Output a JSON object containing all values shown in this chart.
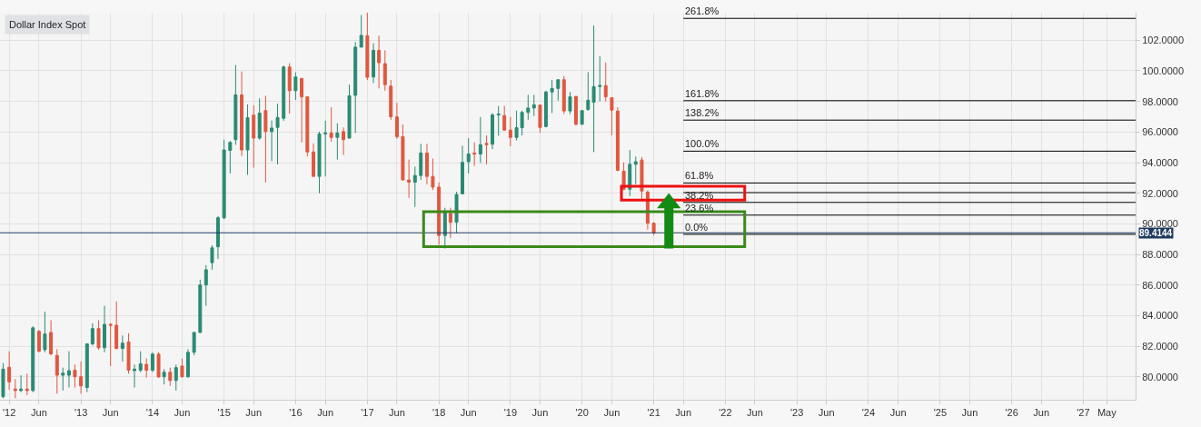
{
  "chart_data": {
    "type": "candlestick",
    "title": "Dollar Index Spot",
    "x": [
      "2011-12",
      "2012-01",
      "2012-02",
      "2012-03",
      "2012-04",
      "2012-05",
      "2012-06",
      "2012-07",
      "2012-08",
      "2012-09",
      "2012-10",
      "2012-11",
      "2012-12",
      "2013-01",
      "2013-02",
      "2013-03",
      "2013-04",
      "2013-05",
      "2013-06",
      "2013-07",
      "2013-08",
      "2013-09",
      "2013-10",
      "2013-11",
      "2013-12",
      "2014-01",
      "2014-02",
      "2014-03",
      "2014-04",
      "2014-05",
      "2014-06",
      "2014-07",
      "2014-08",
      "2014-09",
      "2014-10",
      "2014-11",
      "2014-12",
      "2015-01",
      "2015-02",
      "2015-03",
      "2015-04",
      "2015-05",
      "2015-06",
      "2015-07",
      "2015-08",
      "2015-09",
      "2015-10",
      "2015-11",
      "2015-12",
      "2016-01",
      "2016-02",
      "2016-03",
      "2016-04",
      "2016-05",
      "2016-06",
      "2016-07",
      "2016-08",
      "2016-09",
      "2016-10",
      "2016-11",
      "2016-12",
      "2017-01",
      "2017-02",
      "2017-03",
      "2017-04",
      "2017-05",
      "2017-06",
      "2017-07",
      "2017-08",
      "2017-09",
      "2017-10",
      "2017-11",
      "2017-12",
      "2018-01",
      "2018-02",
      "2018-03",
      "2018-04",
      "2018-05",
      "2018-06",
      "2018-07",
      "2018-08",
      "2018-09",
      "2018-10",
      "2018-11",
      "2018-12",
      "2019-01",
      "2019-02",
      "2019-03",
      "2019-04",
      "2019-05",
      "2019-06",
      "2019-07",
      "2019-08",
      "2019-09",
      "2019-10",
      "2019-11",
      "2019-12",
      "2020-01",
      "2020-02",
      "2020-03",
      "2020-04",
      "2020-05",
      "2020-06",
      "2020-07",
      "2020-08",
      "2020-09",
      "2020-10",
      "2020-11",
      "2020-12",
      "2021-01"
    ],
    "annotations": [
      {
        "text": "261.8%",
        "x": "2021-06",
        "y": 103.43
      },
      {
        "text": "161.8%",
        "x": "2021-06",
        "y": 98.05
      },
      {
        "text": "138.2%",
        "x": "2021-06",
        "y": 96.78
      },
      {
        "text": "100.0%",
        "x": "2021-06",
        "y": 94.75
      },
      {
        "text": "61.8%",
        "x": "2021-06",
        "y": 92.67
      },
      {
        "text": "38.2%",
        "x": "2021-06",
        "y": 91.4
      },
      {
        "text": "23.6%",
        "x": "2021-06",
        "y": 90.57
      },
      {
        "text": "0.0%",
        "x": "2021-06",
        "y": 89.31
      }
    ],
    "ohlc": [
      [
        78.7,
        80.9,
        78.6,
        80.5
      ],
      [
        80.63,
        81.67,
        79.15,
        79.67
      ],
      [
        79.2,
        79.85,
        78.6,
        79.1
      ],
      [
        79.1,
        80.1,
        79.0,
        79.2
      ],
      [
        79.2,
        80.2,
        78.8,
        79.1
      ],
      [
        79.1,
        83.3,
        79.0,
        83.2
      ],
      [
        82.97,
        83.05,
        81.6,
        81.67
      ],
      [
        81.77,
        84.26,
        81.6,
        82.8
      ],
      [
        82.9,
        83.7,
        81.4,
        81.5
      ],
      [
        81.4,
        81.8,
        78.9,
        80.1
      ],
      [
        80.1,
        80.6,
        79.1,
        80.24
      ],
      [
        80.1,
        81.67,
        79.3,
        80.4
      ],
      [
        80.43,
        80.8,
        79.3,
        80.0
      ],
      [
        80.0,
        81.0,
        78.9,
        79.4
      ],
      [
        79.3,
        82.2,
        79.0,
        82.15
      ],
      [
        82.15,
        83.5,
        82.05,
        83.15
      ],
      [
        83.15,
        83.7,
        81.77,
        81.9
      ],
      [
        81.9,
        84.64,
        81.6,
        83.43
      ],
      [
        83.43,
        83.5,
        80.7,
        83.37
      ],
      [
        83.37,
        84.93,
        81.8,
        81.85
      ],
      [
        81.85,
        82.7,
        81.0,
        82.2
      ],
      [
        82.28,
        82.85,
        80.2,
        80.43
      ],
      [
        80.4,
        80.8,
        79.3,
        80.5
      ],
      [
        80.43,
        81.67,
        80.3,
        80.85
      ],
      [
        80.81,
        81.2,
        79.95,
        80.43
      ],
      [
        80.43,
        81.6,
        80.3,
        81.48
      ],
      [
        81.48,
        81.6,
        79.95,
        79.99
      ],
      [
        80.0,
        80.5,
        79.5,
        80.3
      ],
      [
        80.3,
        80.6,
        79.4,
        79.76
      ],
      [
        79.76,
        80.8,
        79.1,
        80.6
      ],
      [
        80.7,
        81.2,
        79.95,
        80.0
      ],
      [
        80.0,
        81.8,
        79.95,
        81.6
      ],
      [
        81.6,
        82.95,
        81.4,
        82.9
      ],
      [
        82.9,
        86.35,
        82.85,
        86.0
      ],
      [
        86.0,
        87.3,
        84.64,
        87.0
      ],
      [
        87.46,
        88.6,
        87.0,
        88.43
      ],
      [
        88.5,
        90.5,
        87.7,
        90.4
      ],
      [
        90.39,
        95.5,
        90.3,
        94.83
      ],
      [
        94.8,
        95.42,
        93.29,
        95.32
      ],
      [
        95.5,
        100.38,
        95.17,
        98.43
      ],
      [
        98.43,
        99.96,
        94.44,
        94.83
      ],
      [
        94.83,
        97.8,
        93.2,
        96.94
      ],
      [
        97.1,
        97.75,
        93.67,
        95.6
      ],
      [
        95.6,
        98.2,
        95.5,
        97.24
      ],
      [
        97.4,
        98.37,
        92.7,
        96.03
      ],
      [
        96.03,
        96.76,
        94.1,
        96.26
      ],
      [
        96.3,
        97.85,
        93.88,
        96.95
      ],
      [
        96.9,
        100.35,
        96.74,
        100.25
      ],
      [
        100.25,
        100.5,
        97.2,
        98.7
      ],
      [
        98.7,
        99.9,
        98.1,
        99.6
      ],
      [
        99.5,
        99.55,
        95.32,
        98.3
      ],
      [
        98.3,
        98.3,
        94.4,
        94.7
      ],
      [
        94.7,
        95.26,
        93.1,
        93.1
      ],
      [
        93.1,
        96.03,
        92.0,
        95.88
      ],
      [
        95.88,
        96.74,
        93.1,
        95.94
      ],
      [
        95.94,
        97.62,
        95.36,
        95.65
      ],
      [
        95.65,
        96.57,
        94.2,
        95.94
      ],
      [
        96.03,
        96.3,
        94.5,
        95.5
      ],
      [
        95.6,
        99.1,
        95.6,
        98.37
      ],
      [
        98.4,
        101.88,
        95.94,
        101.55
      ],
      [
        101.55,
        103.64,
        101.55,
        102.32
      ],
      [
        102.3,
        103.8,
        99.4,
        99.58
      ],
      [
        99.6,
        101.8,
        99.2,
        101.34
      ],
      [
        101.34,
        102.3,
        98.85,
        100.53
      ],
      [
        100.47,
        101.34,
        98.7,
        99.1
      ],
      [
        99.0,
        99.4,
        96.8,
        97.0
      ],
      [
        96.99,
        97.9,
        95.55,
        95.7
      ],
      [
        95.7,
        96.5,
        92.84,
        92.87
      ],
      [
        92.87,
        94.2,
        91.7,
        92.72
      ],
      [
        92.72,
        93.74,
        91.1,
        93.16
      ],
      [
        93.16,
        95.23,
        92.87,
        94.63
      ],
      [
        94.63,
        95.23,
        92.58,
        93.1
      ],
      [
        93.1,
        94.27,
        92.2,
        92.4
      ],
      [
        92.4,
        92.7,
        88.63,
        89.24
      ],
      [
        89.24,
        91.05,
        88.38,
        90.77
      ],
      [
        90.67,
        91.05,
        89.08,
        90.1
      ],
      [
        90.1,
        92.1,
        89.4,
        91.92
      ],
      [
        91.96,
        95.1,
        91.92,
        94.02
      ],
      [
        94.06,
        95.6,
        93.3,
        94.56
      ],
      [
        94.63,
        95.32,
        93.79,
        94.56
      ],
      [
        94.56,
        96.99,
        93.98,
        95.17
      ],
      [
        95.26,
        95.78,
        93.89,
        95.17
      ],
      [
        95.2,
        97.24,
        94.88,
        97.12
      ],
      [
        97.12,
        97.7,
        95.75,
        97.18
      ],
      [
        97.08,
        97.7,
        96.1,
        96.13
      ],
      [
        96.13,
        96.99,
        95.07,
        95.65
      ],
      [
        95.65,
        97.4,
        95.45,
        96.28
      ],
      [
        96.28,
        97.4,
        95.78,
        97.28
      ],
      [
        97.28,
        98.43,
        96.8,
        97.57
      ],
      [
        97.57,
        98.43,
        97.05,
        97.78
      ],
      [
        97.76,
        97.8,
        95.94,
        96.3
      ],
      [
        96.36,
        98.7,
        96.3,
        98.62
      ],
      [
        98.62,
        99.4,
        97.24,
        98.85
      ],
      [
        98.85,
        99.42,
        98.05,
        99.42
      ],
      [
        99.42,
        99.67,
        97.18,
        97.38
      ],
      [
        97.38,
        98.62,
        97.18,
        98.3
      ],
      [
        98.33,
        98.33,
        96.42,
        96.51
      ],
      [
        96.51,
        97.4,
        96.46,
        97.4
      ],
      [
        97.47,
        99.92,
        97.4,
        98.08
      ],
      [
        97.95,
        102.97,
        94.69,
        98.97
      ],
      [
        98.97,
        100.96,
        98.0,
        99.04
      ],
      [
        99.04,
        100.54,
        98.0,
        98.3
      ],
      [
        98.24,
        98.24,
        95.79,
        97.43
      ],
      [
        97.37,
        97.62,
        93.44,
        93.5
      ],
      [
        93.44,
        94.02,
        92.2,
        92.26
      ],
      [
        92.26,
        94.83,
        91.82,
        93.89
      ],
      [
        93.89,
        94.4,
        92.59,
        94.06
      ],
      [
        94.17,
        94.37,
        91.63,
        92.14
      ],
      [
        92.07,
        92.2,
        89.62,
        90.04
      ],
      [
        90.04,
        90.1,
        89.25,
        89.4144
      ]
    ],
    "xlim": [
      "2011-11-15",
      "2027-09-25"
    ],
    "xticks": [
      {
        "value": "2012-01",
        "label": "'12"
      },
      {
        "value": "2012-06",
        "label": "Jun"
      },
      {
        "value": "2013-01",
        "label": "'13"
      },
      {
        "value": "2013-06",
        "label": "Jun"
      },
      {
        "value": "2014-01",
        "label": "'14"
      },
      {
        "value": "2014-06",
        "label": "Jun"
      },
      {
        "value": "2015-01",
        "label": "'15"
      },
      {
        "value": "2015-06",
        "label": "Jun"
      },
      {
        "value": "2016-01",
        "label": "'16"
      },
      {
        "value": "2016-06",
        "label": "Jun"
      },
      {
        "value": "2017-01",
        "label": "'17"
      },
      {
        "value": "2017-06",
        "label": "Jun"
      },
      {
        "value": "2018-01",
        "label": "'18"
      },
      {
        "value": "2018-06",
        "label": "Jun"
      },
      {
        "value": "2019-01",
        "label": "'19"
      },
      {
        "value": "2019-06",
        "label": "Jun"
      },
      {
        "value": "2020-01",
        "label": "'20"
      },
      {
        "value": "2020-06",
        "label": "Jun"
      },
      {
        "value": "2021-01",
        "label": "'21"
      },
      {
        "value": "2021-06",
        "label": "Jun"
      },
      {
        "value": "2022-01",
        "label": "'22"
      },
      {
        "value": "2022-06",
        "label": "Jun"
      },
      {
        "value": "2023-01",
        "label": "'23"
      },
      {
        "value": "2023-06",
        "label": "Jun"
      },
      {
        "value": "2024-01",
        "label": "'24"
      },
      {
        "value": "2024-06",
        "label": "Jun"
      },
      {
        "value": "2025-01",
        "label": "'25"
      },
      {
        "value": "2025-06",
        "label": "Jun"
      },
      {
        "value": "2026-01",
        "label": "'26"
      },
      {
        "value": "2026-06",
        "label": "Jun"
      },
      {
        "value": "2027-01",
        "label": "'27"
      },
      {
        "value": "2027-05",
        "label": "May"
      }
    ],
    "ylim": [
      78.5,
      103.8
    ],
    "yticks": [
      {
        "value": 80,
        "label": "80.0000"
      },
      {
        "value": 82,
        "label": "82.0000"
      },
      {
        "value": 84,
        "label": "84.0000"
      },
      {
        "value": 86,
        "label": "86.0000"
      },
      {
        "value": 88,
        "label": "88.0000"
      },
      {
        "value": 90,
        "label": "90.0000"
      },
      {
        "value": 92,
        "label": "92.0000"
      },
      {
        "value": 94,
        "label": "94.0000"
      },
      {
        "value": 96,
        "label": "96.0000"
      },
      {
        "value": 98,
        "label": "98.0000"
      },
      {
        "value": 100,
        "label": "100.0000"
      },
      {
        "value": 102,
        "label": "102.0000"
      }
    ],
    "ref_lines": [
      {
        "axis": "y",
        "value": 103.43,
        "color": "#000000"
      },
      {
        "axis": "y",
        "value": 98.05,
        "color": "#000000"
      },
      {
        "axis": "y",
        "value": 96.78,
        "color": "#000000"
      },
      {
        "axis": "y",
        "value": 94.75,
        "color": "#000000"
      },
      {
        "axis": "y",
        "value": 92.67,
        "color": "#000000"
      },
      {
        "axis": "y",
        "value": 92.04,
        "color": "#000000"
      },
      {
        "axis": "y",
        "value": 91.4,
        "color": "#000000"
      },
      {
        "axis": "y",
        "value": 90.57,
        "color": "#000000"
      },
      {
        "axis": "y",
        "value": 89.31,
        "color": "#000000"
      },
      {
        "axis": "y",
        "value": 89.4144,
        "label": "89.4144",
        "color": "#1e3a5f"
      }
    ],
    "grid": true
  }
}
